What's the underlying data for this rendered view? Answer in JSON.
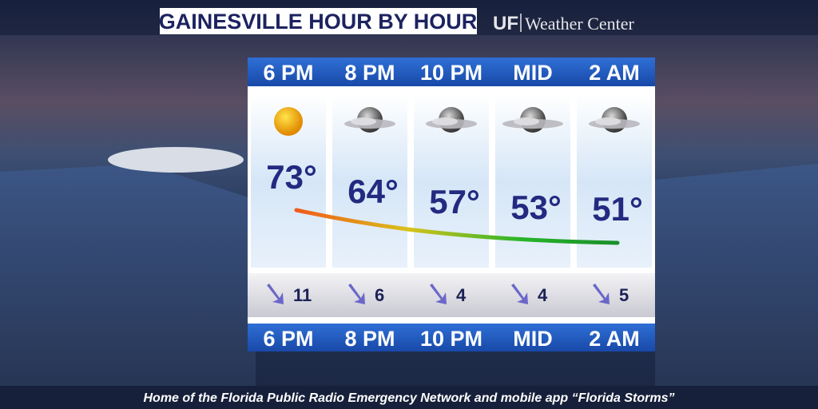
{
  "header": {
    "title": "GAINESVILLE HOUR BY HOUR",
    "logo_short": "UF",
    "logo_text": "Weather Center"
  },
  "forecast": {
    "hours": [
      {
        "time": "6 PM",
        "temp": "73°",
        "wind": "11",
        "sky": "sunny"
      },
      {
        "time": "8 PM",
        "temp": "64°",
        "wind": "6",
        "sky": "partly-cloudy-night"
      },
      {
        "time": "10 PM",
        "temp": "57°",
        "wind": "4",
        "sky": "partly-cloudy-night"
      },
      {
        "time": "MID",
        "temp": "53°",
        "wind": "4",
        "sky": "cloudy-night"
      },
      {
        "time": "2 AM",
        "temp": "51°",
        "wind": "5",
        "sky": "partly-cloudy-night"
      }
    ]
  },
  "footer": {
    "text": "Home of the Florida Public Radio Emergency Network and mobile app “Florida Storms”"
  }
}
